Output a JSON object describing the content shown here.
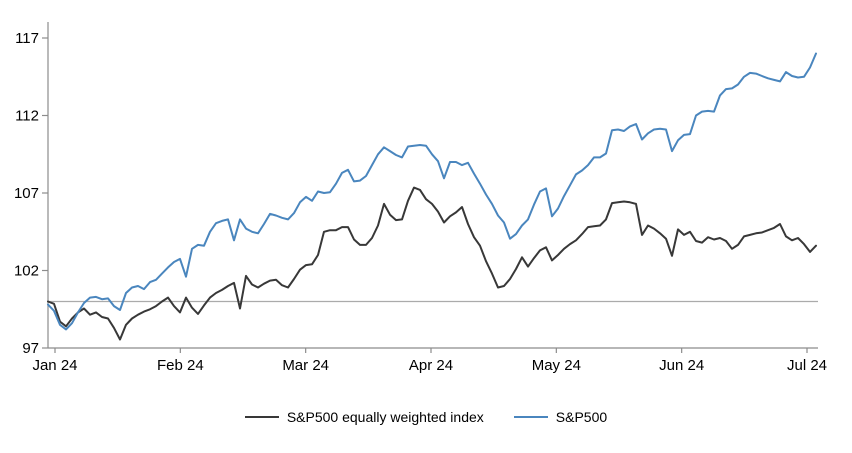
{
  "chart_data": {
    "type": "line",
    "title": "",
    "xlabel": "",
    "ylabel": "",
    "x_tick_labels": [
      "Jan 24",
      "Feb 24",
      "Mar 24",
      "Apr 24",
      "May 24",
      "Jun 24",
      "Jul 24"
    ],
    "y_tick_labels": [
      "97",
      "102",
      "107",
      "112",
      "117"
    ],
    "y_tick_values": [
      97,
      102,
      107,
      112,
      117
    ],
    "ylim": [
      97,
      118
    ],
    "baseline_value": 100,
    "grid": "single horizontal line at 100",
    "legend_position": "bottom-center",
    "colors": {
      "axis": "#8c8c8c",
      "gridline": "#ababab",
      "tick_text": "#000000"
    },
    "series": [
      {
        "name": "S&P500 equally weighted index",
        "color": "#383838",
        "values": [
          100.0,
          99.85,
          98.7,
          98.4,
          98.9,
          99.3,
          99.55,
          99.15,
          99.3,
          99.0,
          98.9,
          98.3,
          97.55,
          98.5,
          98.9,
          99.15,
          99.35,
          99.5,
          99.7,
          100.0,
          100.25,
          99.7,
          99.3,
          100.25,
          99.6,
          99.2,
          99.75,
          100.25,
          100.55,
          100.75,
          101.0,
          101.2,
          99.55,
          101.65,
          101.1,
          100.9,
          101.15,
          101.35,
          101.4,
          101.05,
          100.9,
          101.45,
          102.05,
          102.35,
          102.4,
          103.0,
          104.5,
          104.6,
          104.6,
          104.8,
          104.8,
          104.0,
          103.65,
          103.65,
          104.1,
          104.9,
          106.3,
          105.6,
          105.25,
          105.3,
          106.5,
          107.35,
          107.2,
          106.6,
          106.3,
          105.8,
          105.1,
          105.5,
          105.75,
          106.1,
          105.0,
          104.15,
          103.6,
          102.6,
          101.8,
          100.9,
          101.0,
          101.45,
          102.1,
          102.85,
          102.25,
          102.8,
          103.3,
          103.5,
          102.65,
          103.0,
          103.4,
          103.7,
          103.95,
          104.35,
          104.8,
          104.85,
          104.9,
          105.3,
          106.35,
          106.4,
          106.45,
          106.4,
          106.3,
          104.3,
          104.9,
          104.7,
          104.4,
          104.05,
          102.95,
          104.65,
          104.3,
          104.5,
          103.9,
          103.8,
          104.15,
          104.0,
          104.1,
          103.9,
          103.4,
          103.65,
          104.2,
          104.3,
          104.4,
          104.45,
          104.6,
          104.75,
          105.0,
          104.2,
          103.95,
          104.1,
          103.7,
          103.2,
          103.6
        ]
      },
      {
        "name": "S&P500",
        "color": "#4a86be",
        "values": [
          99.8,
          99.4,
          98.5,
          98.2,
          98.6,
          99.3,
          99.9,
          100.25,
          100.3,
          100.15,
          100.2,
          99.7,
          99.45,
          100.55,
          100.9,
          101.0,
          100.8,
          101.25,
          101.4,
          101.8,
          102.2,
          102.55,
          102.75,
          101.6,
          103.4,
          103.65,
          103.6,
          104.5,
          105.05,
          105.2,
          105.3,
          103.95,
          105.3,
          104.7,
          104.5,
          104.4,
          105.0,
          105.65,
          105.55,
          105.4,
          105.3,
          105.7,
          106.4,
          106.75,
          106.5,
          107.1,
          107.0,
          107.05,
          107.6,
          108.3,
          108.5,
          107.75,
          107.8,
          108.1,
          108.8,
          109.5,
          109.95,
          109.7,
          109.45,
          109.3,
          110.0,
          110.05,
          110.1,
          110.05,
          109.5,
          109.05,
          107.95,
          109.0,
          109.0,
          108.8,
          108.95,
          108.25,
          107.6,
          106.9,
          106.3,
          105.55,
          105.1,
          104.05,
          104.35,
          104.9,
          105.3,
          106.25,
          107.1,
          107.3,
          105.5,
          106.0,
          106.8,
          107.5,
          108.2,
          108.45,
          108.8,
          109.3,
          109.3,
          109.55,
          111.05,
          111.1,
          111.0,
          111.3,
          111.45,
          110.45,
          110.85,
          111.1,
          111.15,
          111.1,
          109.7,
          110.4,
          110.75,
          110.8,
          112.0,
          112.25,
          112.3,
          112.25,
          113.3,
          113.7,
          113.75,
          114.0,
          114.5,
          114.75,
          114.7,
          114.55,
          114.4,
          114.3,
          114.2,
          114.8,
          114.55,
          114.45,
          114.5,
          115.1,
          116.0
        ]
      }
    ]
  },
  "legend": {
    "item1": "S&P500 equally weighted index",
    "item2": "S&P500"
  }
}
